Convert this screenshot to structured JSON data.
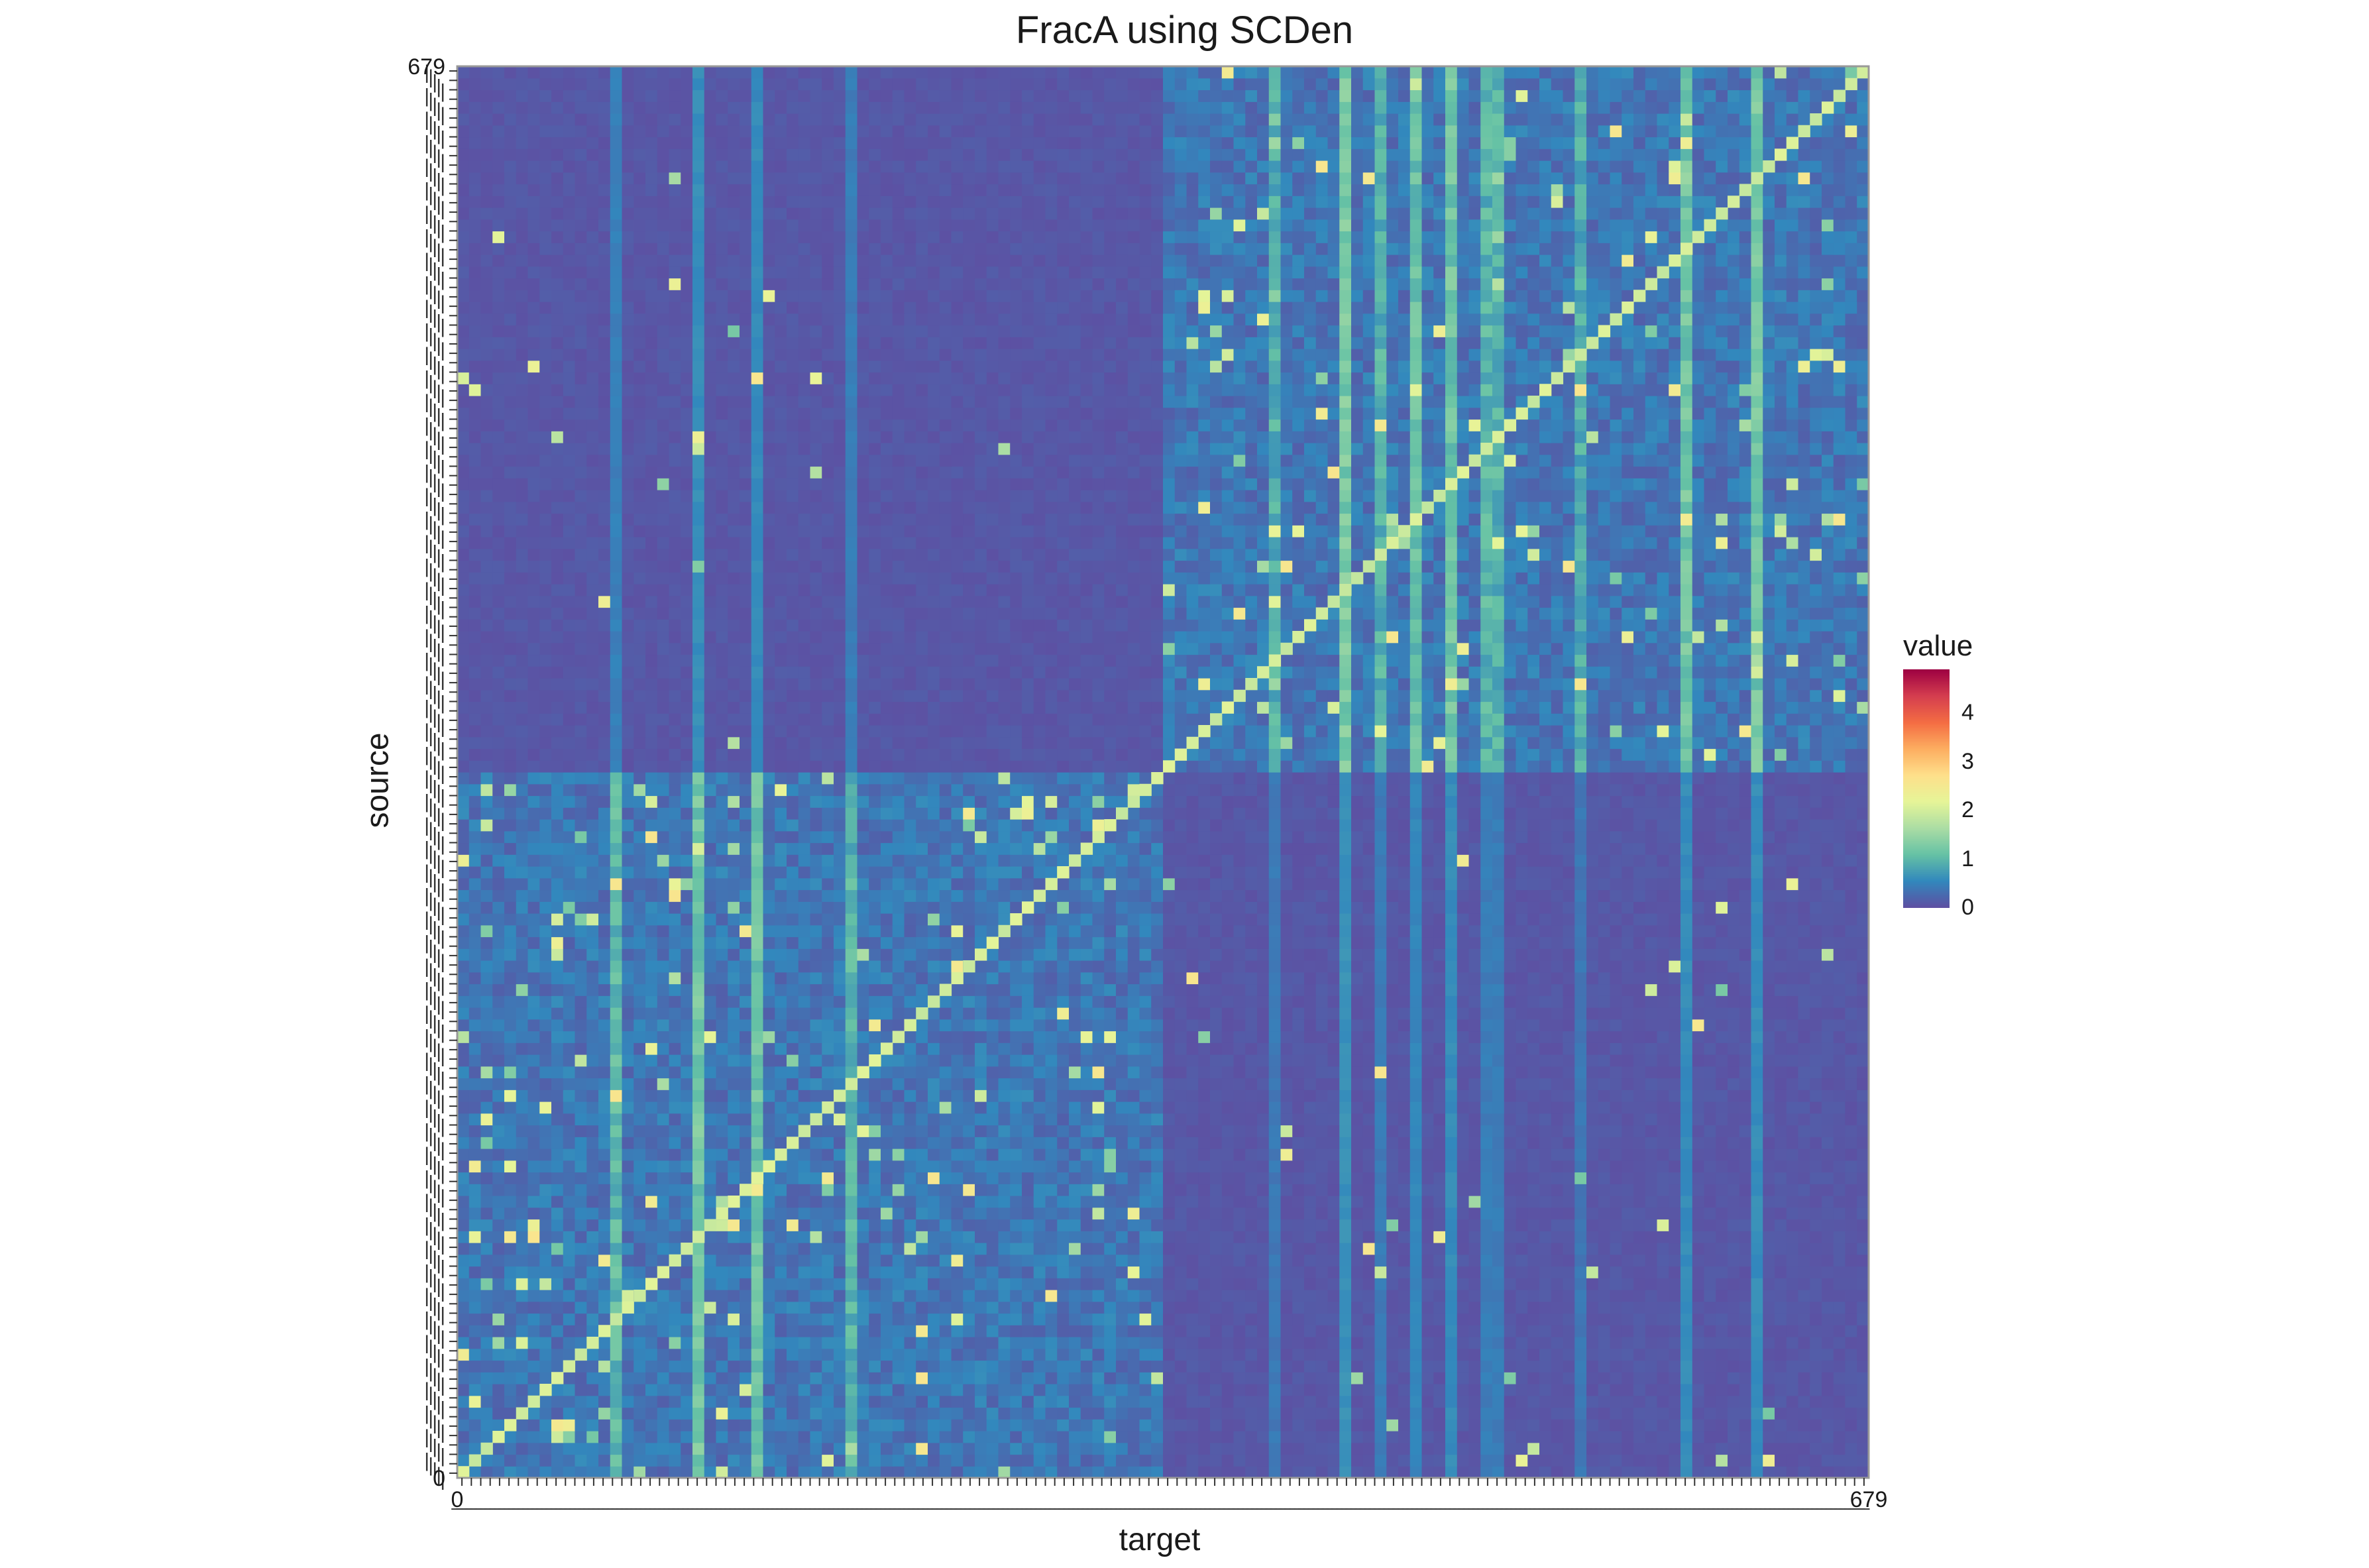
{
  "chart_data": {
    "type": "heatmap",
    "title": "FracA using SCDen",
    "xlabel": "target",
    "ylabel": "source",
    "x_tick_first": "0",
    "x_tick_last": "679",
    "y_tick_first": "0",
    "y_tick_last": "679",
    "n_nodes": 680,
    "blocks": [
      {
        "rows": "0-339",
        "cols": "0-339",
        "level": 0.35,
        "description": "lower-left block: elevated values"
      },
      {
        "rows": "340-679",
        "cols": "340-679",
        "level": 0.35,
        "description": "upper-right block: elevated values"
      },
      {
        "rows": "0-339",
        "cols": "340-679",
        "level": 0.05
      },
      {
        "rows": "340-679",
        "cols": "0-339",
        "level": 0.05
      }
    ],
    "diagonal_value": 2.0,
    "value_range": [
      0,
      4.9
    ],
    "legend": {
      "title": "value",
      "ticks": [
        "0",
        "1",
        "2",
        "3",
        "4"
      ],
      "placement": "right",
      "colormap": "Spectral (reversed)",
      "colors": [
        "#5e4fa2",
        "#3288bd",
        "#66c2a5",
        "#abdda4",
        "#e6f598",
        "#fee08b",
        "#fdae61",
        "#f46d43",
        "#d53e4f",
        "#9e0142"
      ]
    },
    "grid": false
  },
  "style": {
    "background": "#ffffff",
    "panel_border": "#999999",
    "text_color": "#1a1a1a"
  }
}
